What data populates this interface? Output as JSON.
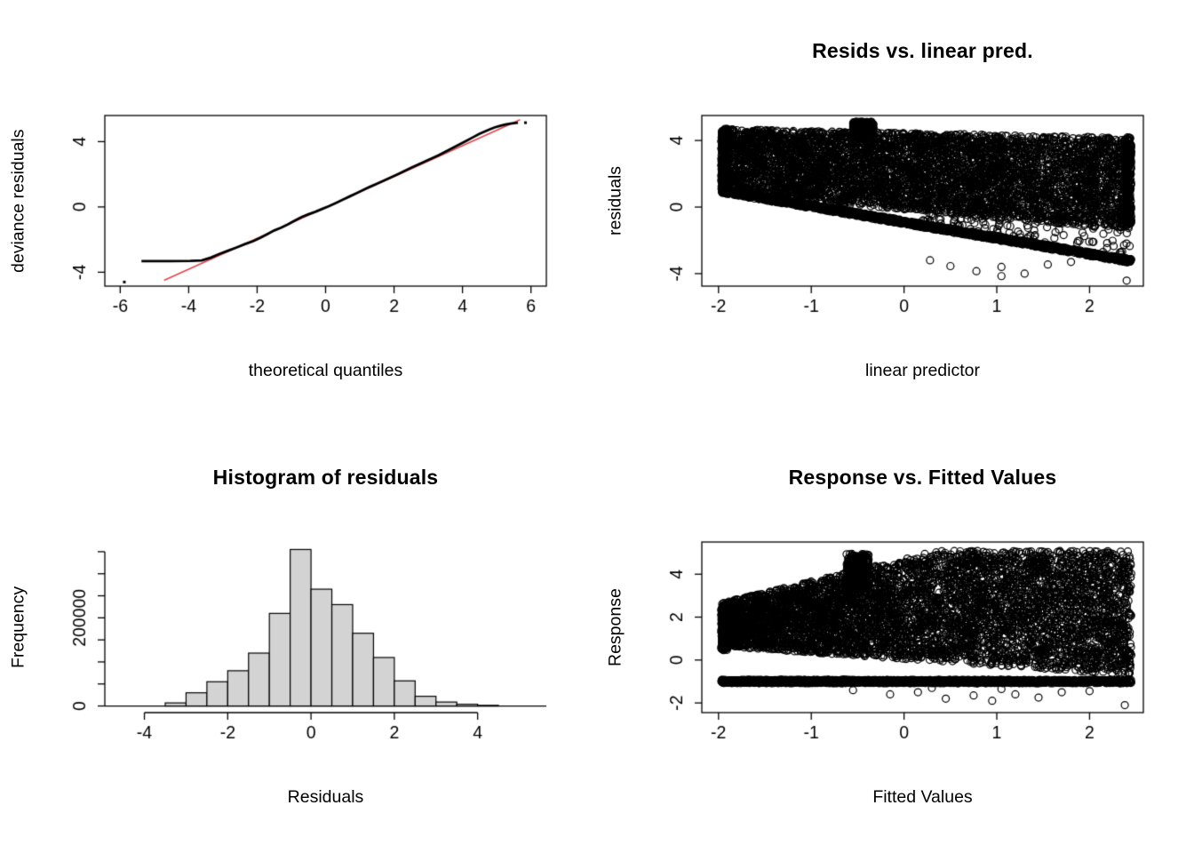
{
  "figure": {
    "background": "#ffffff"
  },
  "style": {
    "fg": "#000000",
    "bar_fill": "#d3d3d3",
    "red_line": "#e0454e",
    "tick_font_px": 19.5,
    "marker_radius": 4
  },
  "chart_data": [
    {
      "id": "qq-plot",
      "type": "line",
      "title": "",
      "xlabel": "theoretical quantiles",
      "ylabel": "deviance residuals",
      "xlim": [
        -6.45,
        6.45
      ],
      "ylim": [
        -4.85,
        5.6
      ],
      "box": true,
      "grid": false,
      "xticks": [
        {
          "v": -6,
          "label": "-6"
        },
        {
          "v": -4,
          "label": "-4"
        },
        {
          "v": -2,
          "label": "-2"
        },
        {
          "v": 0,
          "label": "0"
        },
        {
          "v": 2,
          "label": "2"
        },
        {
          "v": 4,
          "label": "4"
        },
        {
          "v": 6,
          "label": "6"
        }
      ],
      "yticks": [
        {
          "v": -4,
          "label": "-4"
        },
        {
          "v": 0,
          "label": "0"
        },
        {
          "v": 4,
          "label": "4"
        }
      ],
      "ref_line": {
        "x1": -4.72,
        "y1": -4.5,
        "x2": 5.68,
        "y2": 5.34
      },
      "curve_points": [
        [
          -5.38,
          -3.32
        ],
        [
          -4.55,
          -3.32
        ],
        [
          -3.95,
          -3.31
        ],
        [
          -3.62,
          -3.28
        ],
        [
          -3.35,
          -3.1
        ],
        [
          -3.1,
          -2.88
        ],
        [
          -2.85,
          -2.68
        ],
        [
          -2.6,
          -2.48
        ],
        [
          -2.35,
          -2.27
        ],
        [
          -2.12,
          -2.1
        ],
        [
          -1.9,
          -1.88
        ],
        [
          -1.7,
          -1.66
        ],
        [
          -1.5,
          -1.44
        ],
        [
          -1.3,
          -1.27
        ],
        [
          -1.1,
          -1.07
        ],
        [
          -0.9,
          -0.84
        ],
        [
          -0.7,
          -0.62
        ],
        [
          -0.5,
          -0.45
        ],
        [
          -0.3,
          -0.3
        ],
        [
          -0.1,
          -0.12
        ],
        [
          0.1,
          0.05
        ],
        [
          0.3,
          0.24
        ],
        [
          0.5,
          0.44
        ],
        [
          0.7,
          0.64
        ],
        [
          0.9,
          0.84
        ],
        [
          1.1,
          1.04
        ],
        [
          1.3,
          1.24
        ],
        [
          1.5,
          1.42
        ],
        [
          1.7,
          1.61
        ],
        [
          1.9,
          1.8
        ],
        [
          2.1,
          2.0
        ],
        [
          2.3,
          2.2
        ],
        [
          2.5,
          2.4
        ],
        [
          2.7,
          2.59
        ],
        [
          2.9,
          2.78
        ],
        [
          3.1,
          2.97
        ],
        [
          3.3,
          3.17
        ],
        [
          3.5,
          3.38
        ],
        [
          3.7,
          3.6
        ],
        [
          3.9,
          3.82
        ],
        [
          4.1,
          4.04
        ],
        [
          4.3,
          4.26
        ],
        [
          4.5,
          4.48
        ],
        [
          4.65,
          4.62
        ],
        [
          4.8,
          4.76
        ],
        [
          4.95,
          4.88
        ],
        [
          5.1,
          4.97
        ],
        [
          5.25,
          5.05
        ],
        [
          5.4,
          5.1
        ],
        [
          5.55,
          5.14
        ],
        [
          5.62,
          5.16
        ]
      ],
      "extra_points": [
        [
          -5.88,
          -4.6
        ],
        [
          5.84,
          5.16
        ]
      ]
    },
    {
      "id": "resids-vs-linear-pred",
      "type": "scatter",
      "title": "Resids vs. linear pred.",
      "xlabel": "linear predictor",
      "ylabel": "residuals",
      "xlim": [
        -2.18,
        2.58
      ],
      "ylim": [
        -4.75,
        5.5
      ],
      "box": true,
      "grid": false,
      "seed": 42,
      "xticks": [
        {
          "v": -2,
          "label": "-2"
        },
        {
          "v": -1,
          "label": "-1"
        },
        {
          "v": 0,
          "label": "0"
        },
        {
          "v": 1,
          "label": "1"
        },
        {
          "v": 2,
          "label": "2"
        }
      ],
      "yticks": [
        {
          "v": -4,
          "label": "-4"
        },
        {
          "v": 0,
          "label": "0"
        },
        {
          "v": 4,
          "label": "4"
        }
      ],
      "point_groups": [
        {
          "kind": "fill",
          "n": 5200,
          "x": [
            -1.97,
            2.45
          ],
          "low": [
            -0.5,
            -0.15
          ],
          "high": [
            -0.12,
            4.45
          ]
        },
        {
          "kind": "fill",
          "n": 260,
          "x": [
            -0.55,
            -0.33
          ],
          "low": [
            0,
            4.2
          ],
          "high": [
            0,
            5.12
          ]
        },
        {
          "kind": "fill",
          "n": 300,
          "x": [
            -1.97,
            -1.9
          ],
          "low": [
            0,
            0.95
          ],
          "high": [
            0,
            4.7
          ]
        },
        {
          "kind": "fill",
          "n": 220,
          "x": [
            2.38,
            2.45
          ],
          "low": [
            0,
            -1.15
          ],
          "high": [
            0,
            4.2
          ]
        },
        {
          "kind": "line",
          "n": 1500,
          "x": [
            -1.97,
            2.45
          ],
          "line": [
            -0.955,
            -0.91
          ],
          "jitter": 0.12
        },
        {
          "kind": "fill",
          "n": 90,
          "x": [
            0.2,
            2.45
          ],
          "low": [
            -0.95,
            -0.72
          ],
          "high": [
            -0.5,
            -0.18
          ]
        },
        {
          "kind": "list",
          "points": [
            [
              0.5,
              -3.55
            ],
            [
              0.78,
              -3.85
            ],
            [
              1.05,
              -3.6
            ],
            [
              1.3,
              -4.0
            ],
            [
              1.05,
              -4.15
            ],
            [
              1.55,
              -3.45
            ],
            [
              2.4,
              -4.42
            ],
            [
              0.28,
              -3.2
            ],
            [
              1.8,
              -3.3
            ],
            [
              2.1,
              -2.95
            ]
          ]
        }
      ]
    },
    {
      "id": "histogram-of-residuals",
      "type": "bar",
      "title": "Histogram of residuals",
      "xlabel": "Residuals",
      "ylabel": "Frequency",
      "xlim": [
        -4.95,
        5.65
      ],
      "ylim": [
        -15000,
        372000
      ],
      "box": false,
      "grid": false,
      "bin_start": -3.5,
      "bin_width": 0.5,
      "values": [
        7000,
        30000,
        55000,
        80000,
        120000,
        210000,
        355000,
        265000,
        230000,
        165000,
        110000,
        57000,
        22000,
        9000,
        4000,
        1500
      ],
      "xticks": [
        {
          "v": -4,
          "label": "-4"
        },
        {
          "v": -2,
          "label": "-2"
        },
        {
          "v": 0,
          "label": "0"
        },
        {
          "v": 2,
          "label": "2"
        },
        {
          "v": 4,
          "label": "4"
        }
      ],
      "yticks": [
        {
          "v": 0,
          "label": "0"
        },
        {
          "v": 50000,
          "label": ""
        },
        {
          "v": 100000,
          "label": ""
        },
        {
          "v": 150000,
          "label": ""
        },
        {
          "v": 200000,
          "label": "200000"
        },
        {
          "v": 250000,
          "label": ""
        },
        {
          "v": 300000,
          "label": ""
        },
        {
          "v": 350000,
          "label": ""
        }
      ]
    },
    {
      "id": "response-vs-fitted-values",
      "type": "scatter",
      "title": "Response vs. Fitted Values",
      "xlabel": "Fitted Values",
      "ylabel": "Response",
      "xlim": [
        -2.18,
        2.58
      ],
      "ylim": [
        -2.45,
        5.5
      ],
      "box": true,
      "grid": false,
      "seed": 7,
      "xticks": [
        {
          "v": -2,
          "label": "-2"
        },
        {
          "v": -1,
          "label": "-1"
        },
        {
          "v": 0,
          "label": "0"
        },
        {
          "v": 1,
          "label": "1"
        },
        {
          "v": 2,
          "label": "2"
        }
      ],
      "yticks": [
        {
          "v": -2,
          "label": "-2"
        },
        {
          "v": 0,
          "label": "0"
        },
        {
          "v": 2,
          "label": "2"
        },
        {
          "v": 4,
          "label": "4"
        }
      ],
      "point_groups": [
        {
          "kind": "fill",
          "n": 3000,
          "x": [
            -1.97,
            0.35
          ],
          "low": [
            -0.3,
            0.05
          ],
          "high": [
            1.05,
            4.72
          ]
        },
        {
          "kind": "fill",
          "n": 2600,
          "x": [
            0.35,
            2.45
          ],
          "low": [
            -0.3,
            0.05
          ],
          "high": [
            0,
            5.08
          ]
        },
        {
          "kind": "fill",
          "n": 300,
          "x": [
            -0.62,
            -0.38
          ],
          "low": [
            0,
            3.3
          ],
          "high": [
            0,
            4.95
          ]
        },
        {
          "kind": "fill",
          "n": 260,
          "x": [
            -1.97,
            -1.9
          ],
          "low": [
            0,
            0.45
          ],
          "high": [
            0,
            2.55
          ]
        },
        {
          "kind": "fill",
          "n": 140,
          "x": [
            -1.86,
            -1.78
          ],
          "low": [
            0,
            0.7
          ],
          "high": [
            0,
            2.35
          ]
        },
        {
          "kind": "line",
          "n": 1700,
          "x": [
            -1.97,
            2.45
          ],
          "line": [
            0,
            -1.0
          ],
          "jitter": 0.08
        },
        {
          "kind": "list",
          "points": [
            [
              -0.55,
              -1.4
            ],
            [
              -0.15,
              -1.6
            ],
            [
              0.15,
              -1.5
            ],
            [
              0.45,
              -1.8
            ],
            [
              0.75,
              -1.65
            ],
            [
              0.95,
              -1.9
            ],
            [
              1.2,
              -1.6
            ],
            [
              1.45,
              -1.75
            ],
            [
              1.7,
              -1.5
            ],
            [
              2.0,
              -1.45
            ],
            [
              2.38,
              -2.1
            ],
            [
              0.3,
              -1.3
            ],
            [
              1.05,
              -1.35
            ]
          ]
        }
      ]
    }
  ]
}
